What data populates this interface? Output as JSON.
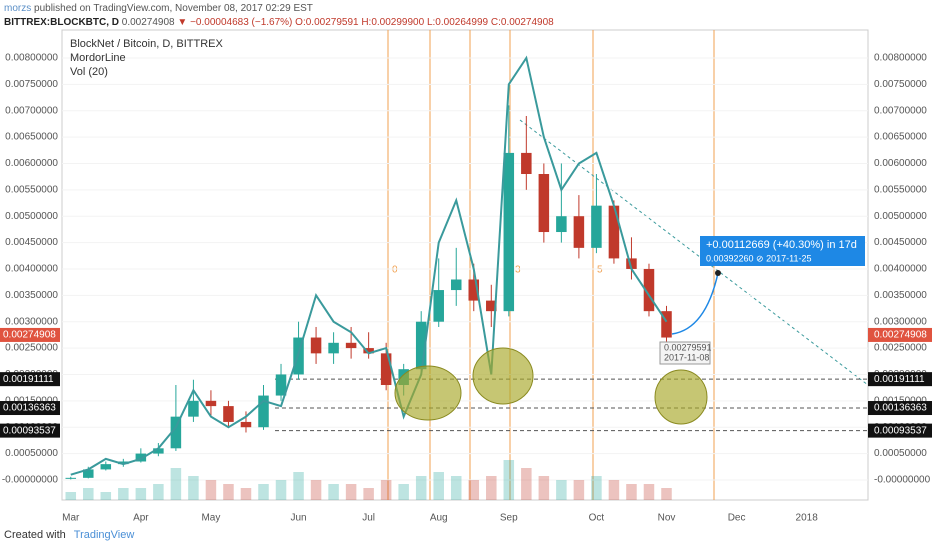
{
  "header": {
    "author": "morzs",
    "published": "published on TradingView.com, November 08, 2017 02:29 EST",
    "symbol": "BITTREX:BLOCKBTC, D",
    "price": "0.00274908",
    "change": "▼ −0.00004683 (−1.67%)",
    "ohlc": "O:0.00279591 H:0.00299900 L:0.00264999 C:0.00274908"
  },
  "footer": {
    "created": "Created with",
    "brand": "TradingView"
  },
  "chart_data": {
    "type": "candlestick",
    "legend": [
      "BlockNet / Bitcoin, D, BITTREX",
      "MordorLine",
      "Vol (20)"
    ],
    "categories": [
      "Mar",
      null,
      null,
      null,
      "Apr",
      null,
      null,
      null,
      "May",
      null,
      null,
      null,
      null,
      "Jun",
      null,
      null,
      null,
      "Jul",
      null,
      null,
      null,
      "Aug",
      null,
      null,
      null,
      "Sep",
      null,
      null,
      null,
      null,
      "Oct",
      null,
      null,
      null,
      "Nov",
      null,
      null,
      null,
      "Dec",
      null,
      null,
      null,
      "2018",
      null,
      null,
      null
    ],
    "open": [
      3e-05,
      4e-05,
      0.0002,
      0.0003,
      0.00035,
      0.0005,
      0.0006,
      0.0012,
      0.0015,
      0.0014,
      0.0011,
      0.001,
      0.0016,
      0.002,
      0.0027,
      0.0024,
      0.0026,
      0.0025,
      0.0024,
      0.0018,
      0.0021,
      0.003,
      0.0036,
      0.0038,
      0.0034,
      0.0032,
      0.0062,
      0.0058,
      0.0047,
      0.005,
      0.0044,
      0.0052,
      0.0042,
      0.004,
      0.0032,
      null,
      null,
      null,
      null,
      null,
      null,
      null,
      null,
      null,
      null,
      null
    ],
    "high": [
      6e-05,
      0.00025,
      0.00035,
      0.0004,
      0.0006,
      0.0007,
      0.0018,
      0.0019,
      0.0017,
      0.0015,
      0.0013,
      0.0018,
      0.0022,
      0.003,
      0.0029,
      0.0028,
      0.0029,
      0.0028,
      0.0026,
      0.0022,
      0.0032,
      0.0042,
      0.0044,
      0.0041,
      0.0037,
      0.0071,
      0.0069,
      0.006,
      0.006,
      0.0054,
      0.0058,
      0.0053,
      0.0046,
      0.0041,
      0.0033,
      null,
      null,
      null,
      null,
      null,
      null,
      null,
      null,
      null,
      null,
      null
    ],
    "low": [
      1e-05,
      3e-05,
      0.00018,
      0.00025,
      0.00033,
      0.00045,
      0.00055,
      0.0011,
      0.0012,
      0.001,
      0.0009,
      0.00095,
      0.0015,
      0.0019,
      0.0022,
      0.0022,
      0.0023,
      0.0023,
      0.0017,
      0.0016,
      0.002,
      0.0029,
      0.0033,
      0.0032,
      0.0029,
      0.0031,
      0.0055,
      0.0045,
      0.0045,
      0.0042,
      0.0043,
      0.0041,
      0.0038,
      0.0031,
      0.0026,
      null,
      null,
      null,
      null,
      null,
      null,
      null,
      null,
      null,
      null,
      null
    ],
    "close": [
      4e-05,
      0.0002,
      0.0003,
      0.00035,
      0.0005,
      0.0006,
      0.0012,
      0.0015,
      0.0014,
      0.0011,
      0.001,
      0.0016,
      0.002,
      0.0027,
      0.0024,
      0.0026,
      0.0025,
      0.0024,
      0.0018,
      0.0021,
      0.003,
      0.0036,
      0.0038,
      0.0034,
      0.0032,
      0.0062,
      0.0058,
      0.0047,
      0.005,
      0.0044,
      0.0052,
      0.0042,
      0.004,
      0.0032,
      0.0027,
      null,
      null,
      null,
      null,
      null,
      null,
      null,
      null,
      null,
      null,
      null
    ],
    "up_color": "#26a69a",
    "down_color": "#c0392b",
    "mordorline": {
      "color": "#3a9a9c",
      "values": [
        0.0001,
        0.0002,
        0.0004,
        0.0003,
        0.0004,
        0.0006,
        0.001,
        0.0017,
        0.0012,
        0.001,
        0.0012,
        0.0015,
        0.0014,
        0.0024,
        0.0035,
        0.003,
        0.0028,
        0.0024,
        0.0025,
        0.0012,
        0.002,
        0.0045,
        0.0053,
        0.004,
        0.002,
        0.0075,
        0.008,
        0.0065,
        0.0055,
        0.006,
        0.0062,
        0.0052,
        0.004,
        0.0035,
        0.003,
        null,
        null,
        null,
        null,
        null,
        null,
        null,
        null,
        null,
        null,
        null
      ]
    },
    "volume": {
      "values": [
        2,
        3,
        2,
        3,
        3,
        4,
        8,
        6,
        5,
        4,
        3,
        4,
        5,
        7,
        5,
        4,
        4,
        3,
        5,
        4,
        6,
        7,
        6,
        5,
        6,
        10,
        8,
        6,
        5,
        5,
        6,
        5,
        4,
        4,
        3,
        null,
        null,
        null,
        null,
        null,
        null,
        null,
        null,
        null,
        null,
        null
      ]
    },
    "ylim": [
      -0.00038,
      0.00853
    ],
    "yticks": [
      {
        "value": 0,
        "label": "-0.00000000"
      },
      {
        "value": 0.0005,
        "label": "0.00050000"
      },
      {
        "value": 0.001,
        "label": "0.00100000"
      },
      {
        "value": 0.0015,
        "label": "0.00150000"
      },
      {
        "value": 0.002,
        "label": "0.00200000"
      },
      {
        "value": 0.0025,
        "label": "0.00250000"
      },
      {
        "value": 0.003,
        "label": "0.00300000"
      },
      {
        "value": 0.0035,
        "label": "0.00350000"
      },
      {
        "value": 0.004,
        "label": "0.00400000"
      },
      {
        "value": 0.0045,
        "label": "0.00450000"
      },
      {
        "value": 0.005,
        "label": "0.00500000"
      },
      {
        "value": 0.0055,
        "label": "0.00550000"
      },
      {
        "value": 0.006,
        "label": "0.00600000"
      },
      {
        "value": 0.0065,
        "label": "0.00650000"
      },
      {
        "value": 0.007,
        "label": "0.00700000"
      },
      {
        "value": 0.0075,
        "label": "0.00750000"
      },
      {
        "value": 0.008,
        "label": "0.00800000"
      }
    ],
    "last_price": 0.00274908,
    "levels": [
      0.00191111,
      0.00136363,
      0.00093537
    ],
    "fib_labels": [
      "0",
      "3",
      "5"
    ],
    "projection": {
      "headline": "+0.00112669 (+40.30%) in 17d",
      "detail": "0.00392260 ⊘ 2017-11-25"
    },
    "callout": {
      "price": "0.00279591",
      "date": "2017-11-08"
    }
  }
}
